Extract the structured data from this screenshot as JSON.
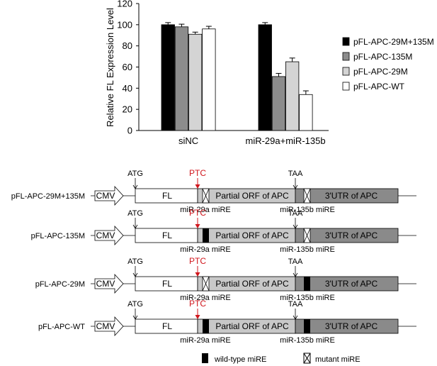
{
  "chart_data": {
    "type": "bar",
    "ylabel": "Relative FL Expression Level",
    "ylim": [
      0,
      120
    ],
    "yticks": [
      0,
      20,
      40,
      60,
      80,
      100,
      120
    ],
    "categories": [
      "siNC",
      "miR-29a+miR-135b"
    ],
    "series": [
      {
        "name": "pFL-APC-29M+135M",
        "color": "#000000",
        "values": [
          100,
          100
        ],
        "errors": [
          2,
          2
        ]
      },
      {
        "name": "pFL-APC-135M",
        "color": "#8c8c8c",
        "values": [
          98,
          51
        ],
        "errors": [
          2.5,
          3
        ]
      },
      {
        "name": "pFL-APC-29M",
        "color": "#d4d4d4",
        "values": [
          91,
          65
        ],
        "errors": [
          2,
          3.5
        ]
      },
      {
        "name": "pFL-APC-WT",
        "color": "#ffffff",
        "values": [
          96,
          34
        ],
        "errors": [
          2.5,
          3.5
        ]
      }
    ],
    "legend_position": "right"
  },
  "diagram": {
    "labels": {
      "atg": "ATG",
      "ptc": "PTC",
      "taa": "TAA",
      "cmv": "CMV",
      "fl": "FL",
      "orf": "Partial ORF of APC",
      "utr": "3'UTR of APC",
      "mir29_site": "miR-29a miRE",
      "mir135_site": "miR-135b miRE"
    },
    "constructs": [
      {
        "name": "pFL-APC-29M+135M",
        "site29": "mutant",
        "site135": "mutant"
      },
      {
        "name": "pFL-APC-135M",
        "site29": "wild-type",
        "site135": "mutant"
      },
      {
        "name": "pFL-APC-29M",
        "site29": "mutant",
        "site135": "wild-type"
      },
      {
        "name": "pFL-APC-WT",
        "site29": "wild-type",
        "site135": "wild-type"
      }
    ],
    "key": {
      "wild_type": "wild-type miRE",
      "mutant": "mutant miRE"
    },
    "colors": {
      "fl_fill": "#ffffff",
      "orf_fill": "#c8c8c8",
      "utr_fill": "#8a8a8a",
      "ptc_color": "#d0161c"
    }
  }
}
